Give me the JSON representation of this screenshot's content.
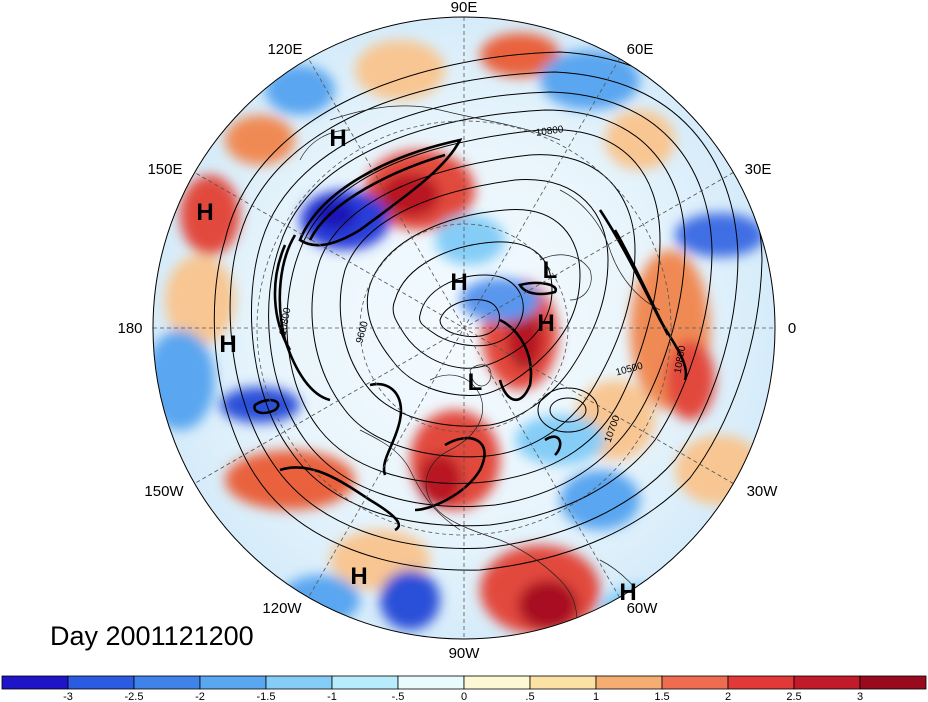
{
  "title": "Day 2001121200",
  "longitude_labels": [
    "90E",
    "60E",
    "30E",
    "0",
    "30W",
    "60W",
    "90W",
    "120W",
    "150W",
    "180",
    "150E",
    "120E"
  ],
  "pressure_systems": [
    {
      "label": "H"
    },
    {
      "label": "H"
    },
    {
      "label": "H"
    },
    {
      "label": "L"
    },
    {
      "label": "H"
    },
    {
      "label": "L"
    },
    {
      "label": "H"
    },
    {
      "label": "H"
    },
    {
      "label": "H"
    }
  ],
  "contour_labels": [
    "10800",
    "9600",
    "10800",
    "10500",
    "10700",
    "10800"
  ],
  "colorbar": {
    "ticks": [
      "-3",
      "-2.5",
      "-2",
      "-1.5",
      "-1",
      "-.5",
      "0",
      ".5",
      "1",
      "1.5",
      "2",
      "2.5",
      "3"
    ],
    "colors": [
      "#1e14c8",
      "#2b5be0",
      "#3f83ea",
      "#5aa6f0",
      "#85cdf7",
      "#b6ecfb",
      "#e8fbfd",
      "#fdf8d4",
      "#fbe1a3",
      "#f5ad72",
      "#ee6d50",
      "#e13838",
      "#c11a2a",
      "#9a0a1e"
    ]
  }
}
